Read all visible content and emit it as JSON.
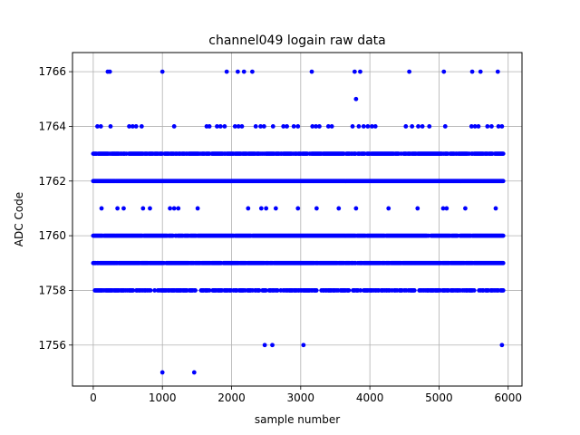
{
  "chart_data": {
    "type": "scatter",
    "title": "channel049 logain raw data",
    "xlabel": "sample number",
    "ylabel": "ADC Code",
    "xlim": [
      -300,
      6200
    ],
    "ylim": [
      1754.5,
      1766.7
    ],
    "xticks": [
      0,
      1000,
      2000,
      3000,
      4000,
      5000,
      6000
    ],
    "yticks": [
      1756,
      1758,
      1760,
      1762,
      1764,
      1766
    ],
    "grid": true,
    "marker_color": "#0000ff",
    "dense_rows": [
      {
        "y": 1762,
        "x_start": 0,
        "x_end": 5930,
        "density": 1.0
      },
      {
        "y": 1760,
        "x_start": 0,
        "x_end": 5930,
        "density": 0.95
      },
      {
        "y": 1759,
        "x_start": 0,
        "x_end": 5930,
        "density": 0.92
      },
      {
        "y": 1763,
        "x_start": 0,
        "x_end": 5930,
        "density": 0.85
      },
      {
        "y": 1758,
        "x_start": 0,
        "x_end": 5930,
        "density": 0.7
      }
    ],
    "sparse_points": [
      {
        "x": 210,
        "y": 1766
      },
      {
        "x": 240,
        "y": 1766
      },
      {
        "x": 1000,
        "y": 1766
      },
      {
        "x": 1930,
        "y": 1766
      },
      {
        "x": 2090,
        "y": 1766
      },
      {
        "x": 2180,
        "y": 1766
      },
      {
        "x": 2300,
        "y": 1766
      },
      {
        "x": 3160,
        "y": 1766
      },
      {
        "x": 3780,
        "y": 1766
      },
      {
        "x": 3860,
        "y": 1766
      },
      {
        "x": 4570,
        "y": 1766
      },
      {
        "x": 5070,
        "y": 1766
      },
      {
        "x": 5480,
        "y": 1766
      },
      {
        "x": 5600,
        "y": 1766
      },
      {
        "x": 5850,
        "y": 1766
      },
      {
        "x": 3800,
        "y": 1765
      },
      {
        "x": 60,
        "y": 1764
      },
      {
        "x": 110,
        "y": 1764
      },
      {
        "x": 250,
        "y": 1764
      },
      {
        "x": 520,
        "y": 1764
      },
      {
        "x": 570,
        "y": 1764
      },
      {
        "x": 620,
        "y": 1764
      },
      {
        "x": 700,
        "y": 1764
      },
      {
        "x": 1170,
        "y": 1764
      },
      {
        "x": 1640,
        "y": 1764
      },
      {
        "x": 1680,
        "y": 1764
      },
      {
        "x": 1790,
        "y": 1764
      },
      {
        "x": 1840,
        "y": 1764
      },
      {
        "x": 1900,
        "y": 1764
      },
      {
        "x": 2050,
        "y": 1764
      },
      {
        "x": 2100,
        "y": 1764
      },
      {
        "x": 2150,
        "y": 1764
      },
      {
        "x": 2350,
        "y": 1764
      },
      {
        "x": 2420,
        "y": 1764
      },
      {
        "x": 2470,
        "y": 1764
      },
      {
        "x": 2600,
        "y": 1764
      },
      {
        "x": 2750,
        "y": 1764
      },
      {
        "x": 2800,
        "y": 1764
      },
      {
        "x": 2900,
        "y": 1764
      },
      {
        "x": 2960,
        "y": 1764
      },
      {
        "x": 3170,
        "y": 1764
      },
      {
        "x": 3220,
        "y": 1764
      },
      {
        "x": 3270,
        "y": 1764
      },
      {
        "x": 3400,
        "y": 1764
      },
      {
        "x": 3450,
        "y": 1764
      },
      {
        "x": 3750,
        "y": 1764
      },
      {
        "x": 3840,
        "y": 1764
      },
      {
        "x": 3910,
        "y": 1764
      },
      {
        "x": 3970,
        "y": 1764
      },
      {
        "x": 4030,
        "y": 1764
      },
      {
        "x": 4080,
        "y": 1764
      },
      {
        "x": 4520,
        "y": 1764
      },
      {
        "x": 4610,
        "y": 1764
      },
      {
        "x": 4700,
        "y": 1764
      },
      {
        "x": 4760,
        "y": 1764
      },
      {
        "x": 4860,
        "y": 1764
      },
      {
        "x": 5090,
        "y": 1764
      },
      {
        "x": 5470,
        "y": 1764
      },
      {
        "x": 5520,
        "y": 1764
      },
      {
        "x": 5570,
        "y": 1764
      },
      {
        "x": 5700,
        "y": 1764
      },
      {
        "x": 5760,
        "y": 1764
      },
      {
        "x": 5860,
        "y": 1764
      },
      {
        "x": 5910,
        "y": 1764
      },
      {
        "x": 120,
        "y": 1761
      },
      {
        "x": 350,
        "y": 1761
      },
      {
        "x": 440,
        "y": 1761
      },
      {
        "x": 720,
        "y": 1761
      },
      {
        "x": 820,
        "y": 1761
      },
      {
        "x": 1110,
        "y": 1761
      },
      {
        "x": 1170,
        "y": 1761
      },
      {
        "x": 1230,
        "y": 1761
      },
      {
        "x": 1510,
        "y": 1761
      },
      {
        "x": 2240,
        "y": 1761
      },
      {
        "x": 2430,
        "y": 1761
      },
      {
        "x": 2500,
        "y": 1761
      },
      {
        "x": 2640,
        "y": 1761
      },
      {
        "x": 2960,
        "y": 1761
      },
      {
        "x": 3230,
        "y": 1761
      },
      {
        "x": 3550,
        "y": 1761
      },
      {
        "x": 3800,
        "y": 1761
      },
      {
        "x": 4270,
        "y": 1761
      },
      {
        "x": 4690,
        "y": 1761
      },
      {
        "x": 5060,
        "y": 1761
      },
      {
        "x": 5110,
        "y": 1761
      },
      {
        "x": 5380,
        "y": 1761
      },
      {
        "x": 5820,
        "y": 1761
      },
      {
        "x": 2480,
        "y": 1756
      },
      {
        "x": 2590,
        "y": 1756
      },
      {
        "x": 3040,
        "y": 1756
      },
      {
        "x": 5910,
        "y": 1756
      },
      {
        "x": 1000,
        "y": 1755
      },
      {
        "x": 1460,
        "y": 1755
      }
    ]
  }
}
